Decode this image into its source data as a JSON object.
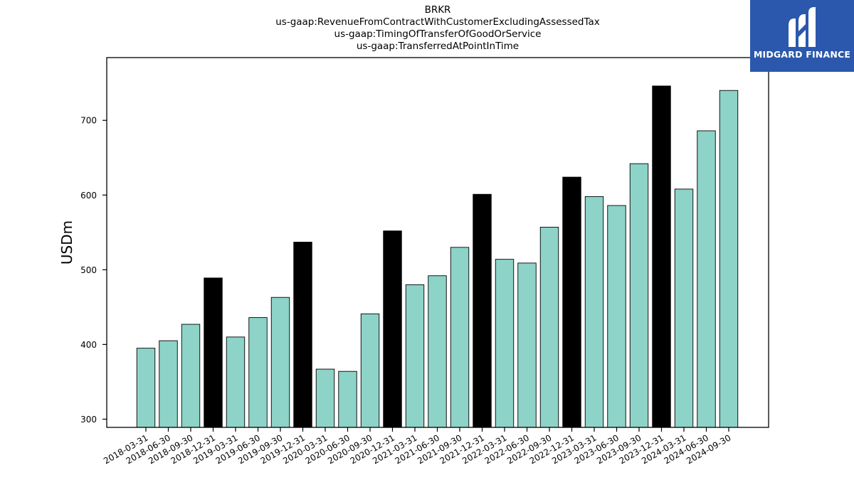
{
  "chart_data": {
    "type": "bar",
    "title_lines": [
      "BRKR",
      "us-gaap:RevenueFromContractWithCustomerExcludingAssessedTax",
      "us-gaap:TimingOfTransferOfGoodOrService",
      "us-gaap:TransferredAtPointInTime"
    ],
    "ylabel": "USDm",
    "xlabel": "",
    "ylim": [
      289,
      784
    ],
    "yticks": [
      300,
      400,
      500,
      600,
      700
    ],
    "grid": false,
    "legend": "none",
    "categories": [
      "2018-03-31",
      "2018-06-30",
      "2018-09-30",
      "2018-12-31",
      "2019-03-31",
      "2019-06-30",
      "2019-09-30",
      "2019-12-31",
      "2020-03-31",
      "2020-06-30",
      "2020-09-30",
      "2020-12-31",
      "2021-03-31",
      "2021-06-30",
      "2021-09-30",
      "2021-12-31",
      "2022-03-31",
      "2022-06-30",
      "2022-09-30",
      "2022-12-31",
      "2023-03-31",
      "2023-06-30",
      "2023-09-30",
      "2023-12-31",
      "2024-03-31",
      "2024-06-30",
      "2024-09-30"
    ],
    "values": [
      395,
      405,
      427,
      489,
      410,
      436,
      463,
      537,
      367,
      364,
      441,
      552,
      480,
      492,
      530,
      601,
      514,
      509,
      557,
      624,
      598,
      586,
      642,
      746,
      608,
      686,
      740
    ],
    "bar_colors": {
      "quarter": "#8dd3c7",
      "year_end": "#000000"
    }
  },
  "logo": {
    "text": "MIDGARD FINANCE",
    "background": "#2b58ad"
  }
}
